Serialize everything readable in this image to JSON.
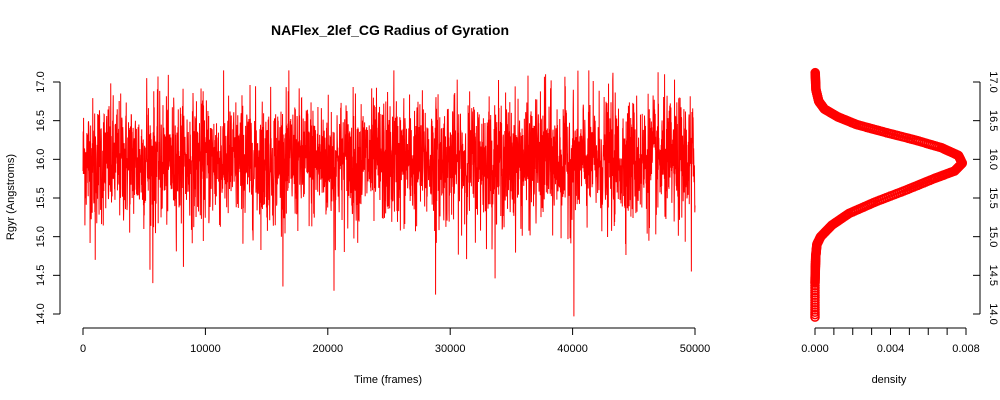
{
  "title": "NAFlex_2lef_CG Radius of Gyration",
  "colors": {
    "series": "#ff0000",
    "axis": "#000000",
    "background": "#ffffff"
  },
  "chart_data": [
    {
      "type": "line",
      "title": "NAFlex_2lef_CG Radius of Gyration",
      "xlabel": "Time (frames)",
      "ylabel": "Rgyr (Angstroms)",
      "xlim": [
        0,
        50000
      ],
      "ylim": [
        14.0,
        17.0
      ],
      "x_ticks": [
        "0",
        "10000",
        "20000",
        "30000",
        "40000",
        "50000"
      ],
      "y_ticks": [
        "14.0",
        "14.5",
        "15.0",
        "15.5",
        "16.0",
        "16.5",
        "17.0"
      ],
      "y_axis_side": "left",
      "grid": false,
      "series": [
        {
          "color": "#ff0000",
          "n_frames": 50000,
          "typical_band": [
            15.25,
            16.7
          ],
          "min": 13.97,
          "max": 17.15,
          "spikes": [
            {
              "x": 1000,
              "y": 14.7
            },
            {
              "x": 5700,
              "y": 14.4
            },
            {
              "x": 20500,
              "y": 14.3
            },
            {
              "x": 28800,
              "y": 14.25
            },
            {
              "x": 40100,
              "y": 13.97
            },
            {
              "x": 49700,
              "y": 14.55
            },
            {
              "x": 25400,
              "y": 17.15
            },
            {
              "x": 43300,
              "y": 17.12
            },
            {
              "x": 37800,
              "y": 17.1
            },
            {
              "x": 5200,
              "y": 17.05
            }
          ]
        }
      ]
    },
    {
      "type": "scatter",
      "xlabel": "density",
      "ylabel": "",
      "xlim": [
        0.0,
        0.008
      ],
      "ylim": [
        14.0,
        17.0
      ],
      "x_ticks": [
        "0.000",
        "0.004",
        "0.008"
      ],
      "y_ticks": [
        "14.0",
        "14.5",
        "15.0",
        "15.5",
        "16.0",
        "16.5",
        "17.0"
      ],
      "y_axis_side": "right",
      "grid": false,
      "series": [
        {
          "color": "#ff0000",
          "x": [
            0.0,
            0.0,
            2e-05,
            4e-05,
            0.0001,
            0.0003,
            0.0009,
            0.0018,
            0.0032,
            0.0048,
            0.0063,
            0.0074,
            0.0078,
            0.0076,
            0.0067,
            0.0053,
            0.0037,
            0.0022,
            0.0012,
            0.0005,
            0.0002,
            5e-05,
            1e-05
          ],
          "y": [
            13.96,
            14.4,
            14.6,
            14.75,
            14.9,
            15.0,
            15.15,
            15.3,
            15.45,
            15.6,
            15.75,
            15.85,
            15.95,
            16.05,
            16.15,
            16.25,
            16.35,
            16.45,
            16.55,
            16.65,
            16.75,
            16.9,
            17.12
          ]
        }
      ]
    }
  ]
}
